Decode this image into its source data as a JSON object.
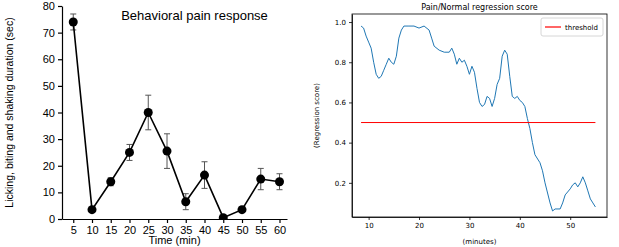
{
  "chart_data": [
    {
      "type": "line",
      "title": "Behavioral pain response",
      "x_label": "Time (min)",
      "y_label": "Licking, biting and shaking duration (sec)",
      "xlim": [
        2,
        62
      ],
      "ylim": [
        0,
        80
      ],
      "xticks": [
        5,
        10,
        15,
        20,
        25,
        30,
        35,
        40,
        45,
        50,
        55,
        60
      ],
      "yticks": [
        0,
        10,
        20,
        30,
        40,
        50,
        60,
        70,
        80
      ],
      "grid": false,
      "series": [
        {
          "color": "#000000",
          "marker": "circle",
          "line_style": "solid",
          "x": [
            5,
            10,
            15,
            20,
            25,
            30,
            35,
            40,
            45,
            50,
            55,
            60
          ],
          "values": [
            74,
            3.5,
            14,
            25,
            40,
            25.5,
            6.5,
            16.5,
            0.5,
            3.5,
            15,
            14
          ],
          "errors": [
            3,
            0.5,
            1.5,
            3,
            6.5,
            6.5,
            3,
            5,
            0.5,
            1,
            4,
            3
          ]
        }
      ]
    },
    {
      "type": "line",
      "title": "Pain/Normal regression score",
      "x_label": "(minutes)",
      "y_label": "(Regression score)",
      "xlim": [
        6.7,
        57.3
      ],
      "ylim": [
        0.03,
        1.04
      ],
      "xticks": [
        10,
        20,
        30,
        40,
        50
      ],
      "yticks": [
        0.2,
        0.4,
        0.6,
        0.8,
        {
          "value": 1,
          "label": "1.0"
        }
      ],
      "grid": false,
      "legend": "upper right",
      "series": [
        {
          "color": "#1f77b4",
          "line_style": "solid",
          "x": [
            8.5,
            9,
            9.5,
            10,
            10.5,
            11,
            11.5,
            12,
            12.5,
            13,
            13.5,
            14,
            14.5,
            15,
            15.5,
            16,
            16.5,
            17,
            18,
            19,
            20,
            21,
            22,
            22.5,
            23,
            24,
            25,
            26,
            26.5,
            27,
            27.5,
            28,
            28.5,
            29,
            29.5,
            30,
            30.5,
            31,
            31.5,
            32,
            32.5,
            33,
            33.5,
            34,
            34.5,
            35,
            35.5,
            36,
            36.5,
            37,
            37.5,
            38,
            38.5,
            39,
            39.5,
            40,
            40.5,
            41,
            41.5,
            42,
            42.5,
            43,
            44,
            44.5,
            45,
            46,
            46.5,
            47,
            48,
            48.5,
            49,
            50,
            50.5,
            51,
            51.5,
            52,
            52.5,
            53,
            53.5,
            54,
            54.5,
            55
          ],
          "values": [
            0.98,
            0.97,
            0.93,
            0.9,
            0.87,
            0.8,
            0.74,
            0.72,
            0.73,
            0.76,
            0.79,
            0.82,
            0.8,
            0.79,
            0.83,
            0.92,
            0.96,
            0.98,
            0.98,
            0.98,
            0.97,
            0.98,
            0.96,
            0.92,
            0.88,
            0.86,
            0.85,
            0.85,
            0.87,
            0.84,
            0.79,
            0.82,
            0.8,
            0.81,
            0.78,
            0.74,
            0.78,
            0.75,
            0.67,
            0.6,
            0.58,
            0.59,
            0.63,
            0.62,
            0.58,
            0.62,
            0.69,
            0.72,
            0.83,
            0.86,
            0.84,
            0.73,
            0.63,
            0.62,
            0.63,
            0.61,
            0.6,
            0.58,
            0.52,
            0.47,
            0.4,
            0.34,
            0.3,
            0.26,
            0.2,
            0.1,
            0.06,
            0.07,
            0.07,
            0.1,
            0.14,
            0.17,
            0.19,
            0.2,
            0.18,
            0.2,
            0.23,
            0.2,
            0.16,
            0.12,
            0.1,
            0.08
          ]
        },
        {
          "name": "threshold",
          "color": "#ff0000",
          "line_style": "solid",
          "x": [
            8.5,
            55
          ],
          "values": [
            0.5,
            0.5
          ]
        }
      ]
    }
  ]
}
